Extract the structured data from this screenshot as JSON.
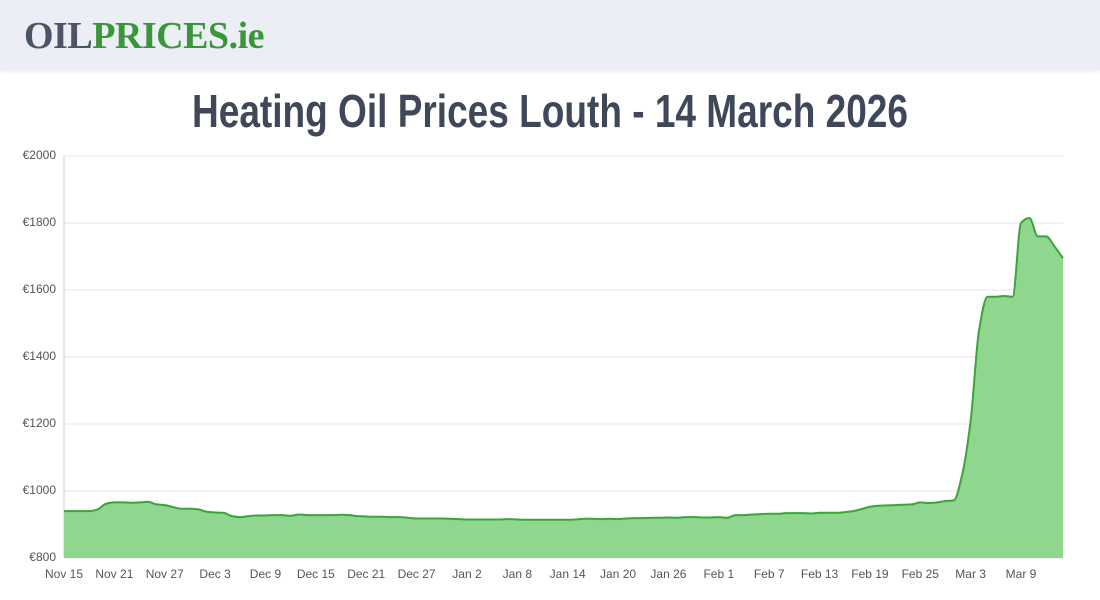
{
  "header": {
    "logo_part1": "OIL",
    "logo_part2": "PRICES.ie"
  },
  "chart_data": {
    "type": "area",
    "title": "Heating Oil Prices Louth - 14 March 2026",
    "categories": [
      "Nov 15",
      null,
      null,
      null,
      null,
      null,
      "Nov 21",
      null,
      null,
      null,
      null,
      null,
      "Nov 27",
      null,
      null,
      null,
      null,
      null,
      "Dec 3",
      null,
      null,
      null,
      null,
      null,
      "Dec 9",
      null,
      null,
      null,
      null,
      null,
      "Dec 15",
      null,
      null,
      null,
      null,
      null,
      "Dec 21",
      null,
      null,
      null,
      null,
      null,
      "Dec 27",
      null,
      null,
      null,
      null,
      null,
      "Jan 2",
      null,
      null,
      null,
      null,
      null,
      "Jan 8",
      null,
      null,
      null,
      null,
      null,
      "Jan 14",
      null,
      null,
      null,
      null,
      null,
      "Jan 20",
      null,
      null,
      null,
      null,
      null,
      "Jan 26",
      null,
      null,
      null,
      null,
      null,
      "Feb 1",
      null,
      null,
      null,
      null,
      null,
      "Feb 7",
      null,
      null,
      null,
      null,
      null,
      "Feb 13",
      null,
      null,
      null,
      null,
      null,
      "Feb 19",
      null,
      null,
      null,
      null,
      null,
      "Feb 25",
      null,
      null,
      null,
      null,
      null,
      "Mar 3",
      null,
      null,
      null,
      null,
      null,
      "Mar 9",
      null,
      null,
      null,
      null,
      null
    ],
    "values": [
      940,
      940,
      940,
      940,
      945,
      962,
      966,
      966,
      965,
      966,
      968,
      960,
      958,
      952,
      947,
      947,
      945,
      938,
      936,
      935,
      925,
      922,
      925,
      927,
      927,
      928,
      928,
      926,
      930,
      928,
      928,
      928,
      928,
      929,
      928,
      925,
      924,
      923,
      923,
      922,
      922,
      920,
      918,
      918,
      918,
      918,
      917,
      916,
      915,
      915,
      915,
      915,
      915,
      916,
      915,
      914,
      914,
      914,
      914,
      914,
      914,
      915,
      917,
      917,
      916,
      917,
      916,
      918,
      919,
      919,
      920,
      920,
      921,
      920,
      922,
      922,
      921,
      921,
      922,
      920,
      928,
      928,
      930,
      931,
      932,
      932,
      934,
      934,
      934,
      933,
      935,
      935,
      935,
      937,
      940,
      946,
      953,
      956,
      957,
      958,
      959,
      960,
      966,
      964,
      966,
      970,
      972,
      1050,
      1210,
      1480,
      1580,
      1580,
      1582,
      1580,
      1800,
      1815,
      1760,
      1760,
      1730,
      1695
    ],
    "color": "#3aa53a",
    "fill_color": "#8fd68f",
    "ylim": [
      800,
      2000
    ],
    "yticks": [
      {
        "value": 800,
        "label": "€800"
      },
      {
        "value": 1000,
        "label": "€1000"
      },
      {
        "value": 1200,
        "label": "€1200"
      },
      {
        "value": 1400,
        "label": "€1400"
      },
      {
        "value": 1600,
        "label": "€1600"
      },
      {
        "value": 1800,
        "label": "€1800"
      },
      {
        "value": 2000,
        "label": "€2000"
      }
    ],
    "grid": true
  }
}
